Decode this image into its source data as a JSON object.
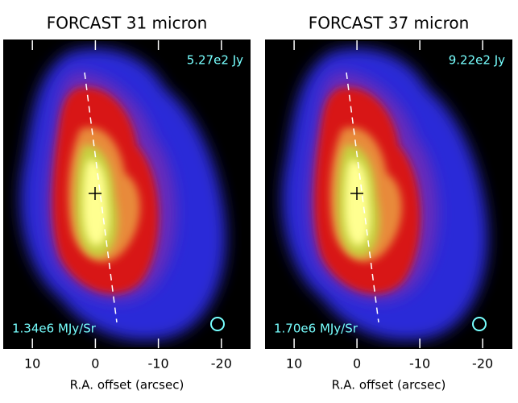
{
  "panels": [
    {
      "title": "FORCAST 31 micron",
      "flux": "5.27e2 Jy",
      "intensity": "1.34e6 MJy/Sr",
      "xlabel": "R.A. offset (arcsec)",
      "xlim": [
        14.5,
        -24.5
      ],
      "xticks": [
        10,
        0,
        -10,
        -20
      ]
    },
    {
      "title": "FORCAST 37 micron",
      "flux": "9.22e2 Jy",
      "intensity": "1.70e6 MJy/Sr",
      "xlabel": "R.A. offset (arcsec)",
      "xlim": [
        14.5,
        -24.6
      ],
      "xticks": [
        10,
        0,
        -10,
        -20
      ]
    }
  ]
}
